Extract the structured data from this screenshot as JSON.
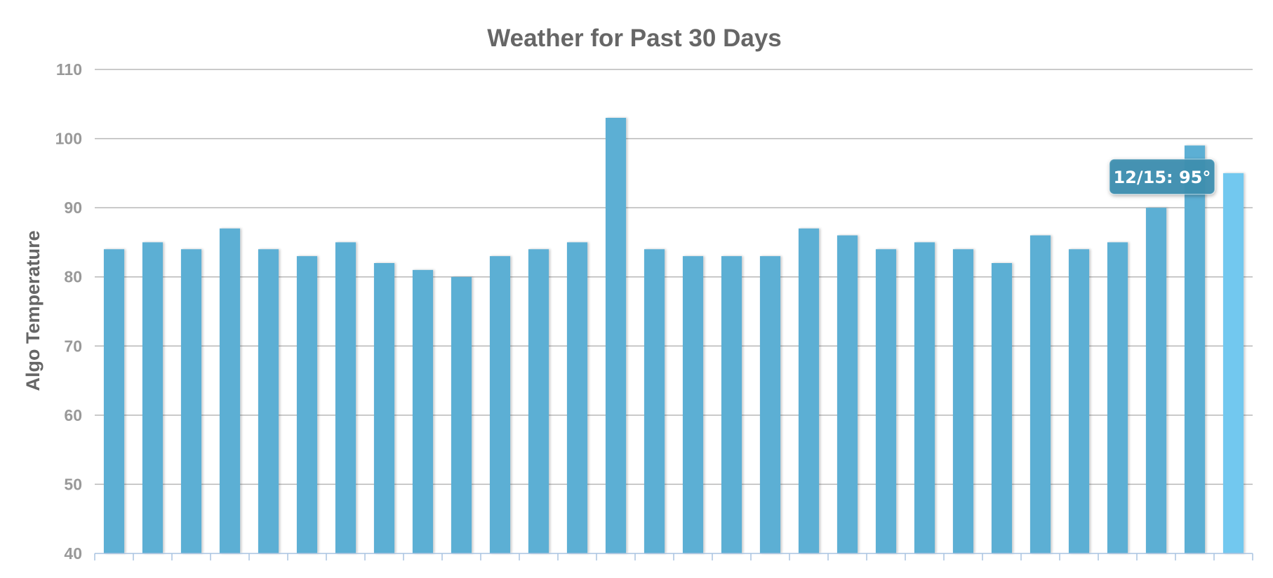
{
  "chart_data": {
    "type": "bar",
    "title": "Weather for Past 30 Days",
    "xlabel": "",
    "ylabel": "Algo Temperature",
    "ylim": [
      40,
      110
    ],
    "yticks": [
      "40",
      "50",
      "60",
      "70",
      "80",
      "90",
      "100",
      "110"
    ],
    "grid": true,
    "legend": "none",
    "values": [
      84,
      85,
      84,
      87,
      84,
      83,
      85,
      82,
      81,
      80,
      83,
      84,
      85,
      103,
      84,
      83,
      83,
      83,
      87,
      86,
      84,
      85,
      84,
      82,
      86,
      84,
      85,
      90,
      99,
      95
    ],
    "highlight_index": 29,
    "tooltip": "12/15: 95°",
    "colors": {
      "bar": "#5bafd4",
      "bar_highlight": "#72c8ef",
      "tooltip_bg": "#3f8fb0",
      "grid": "#b8b8b8",
      "axis": "#a9c3e0"
    }
  }
}
